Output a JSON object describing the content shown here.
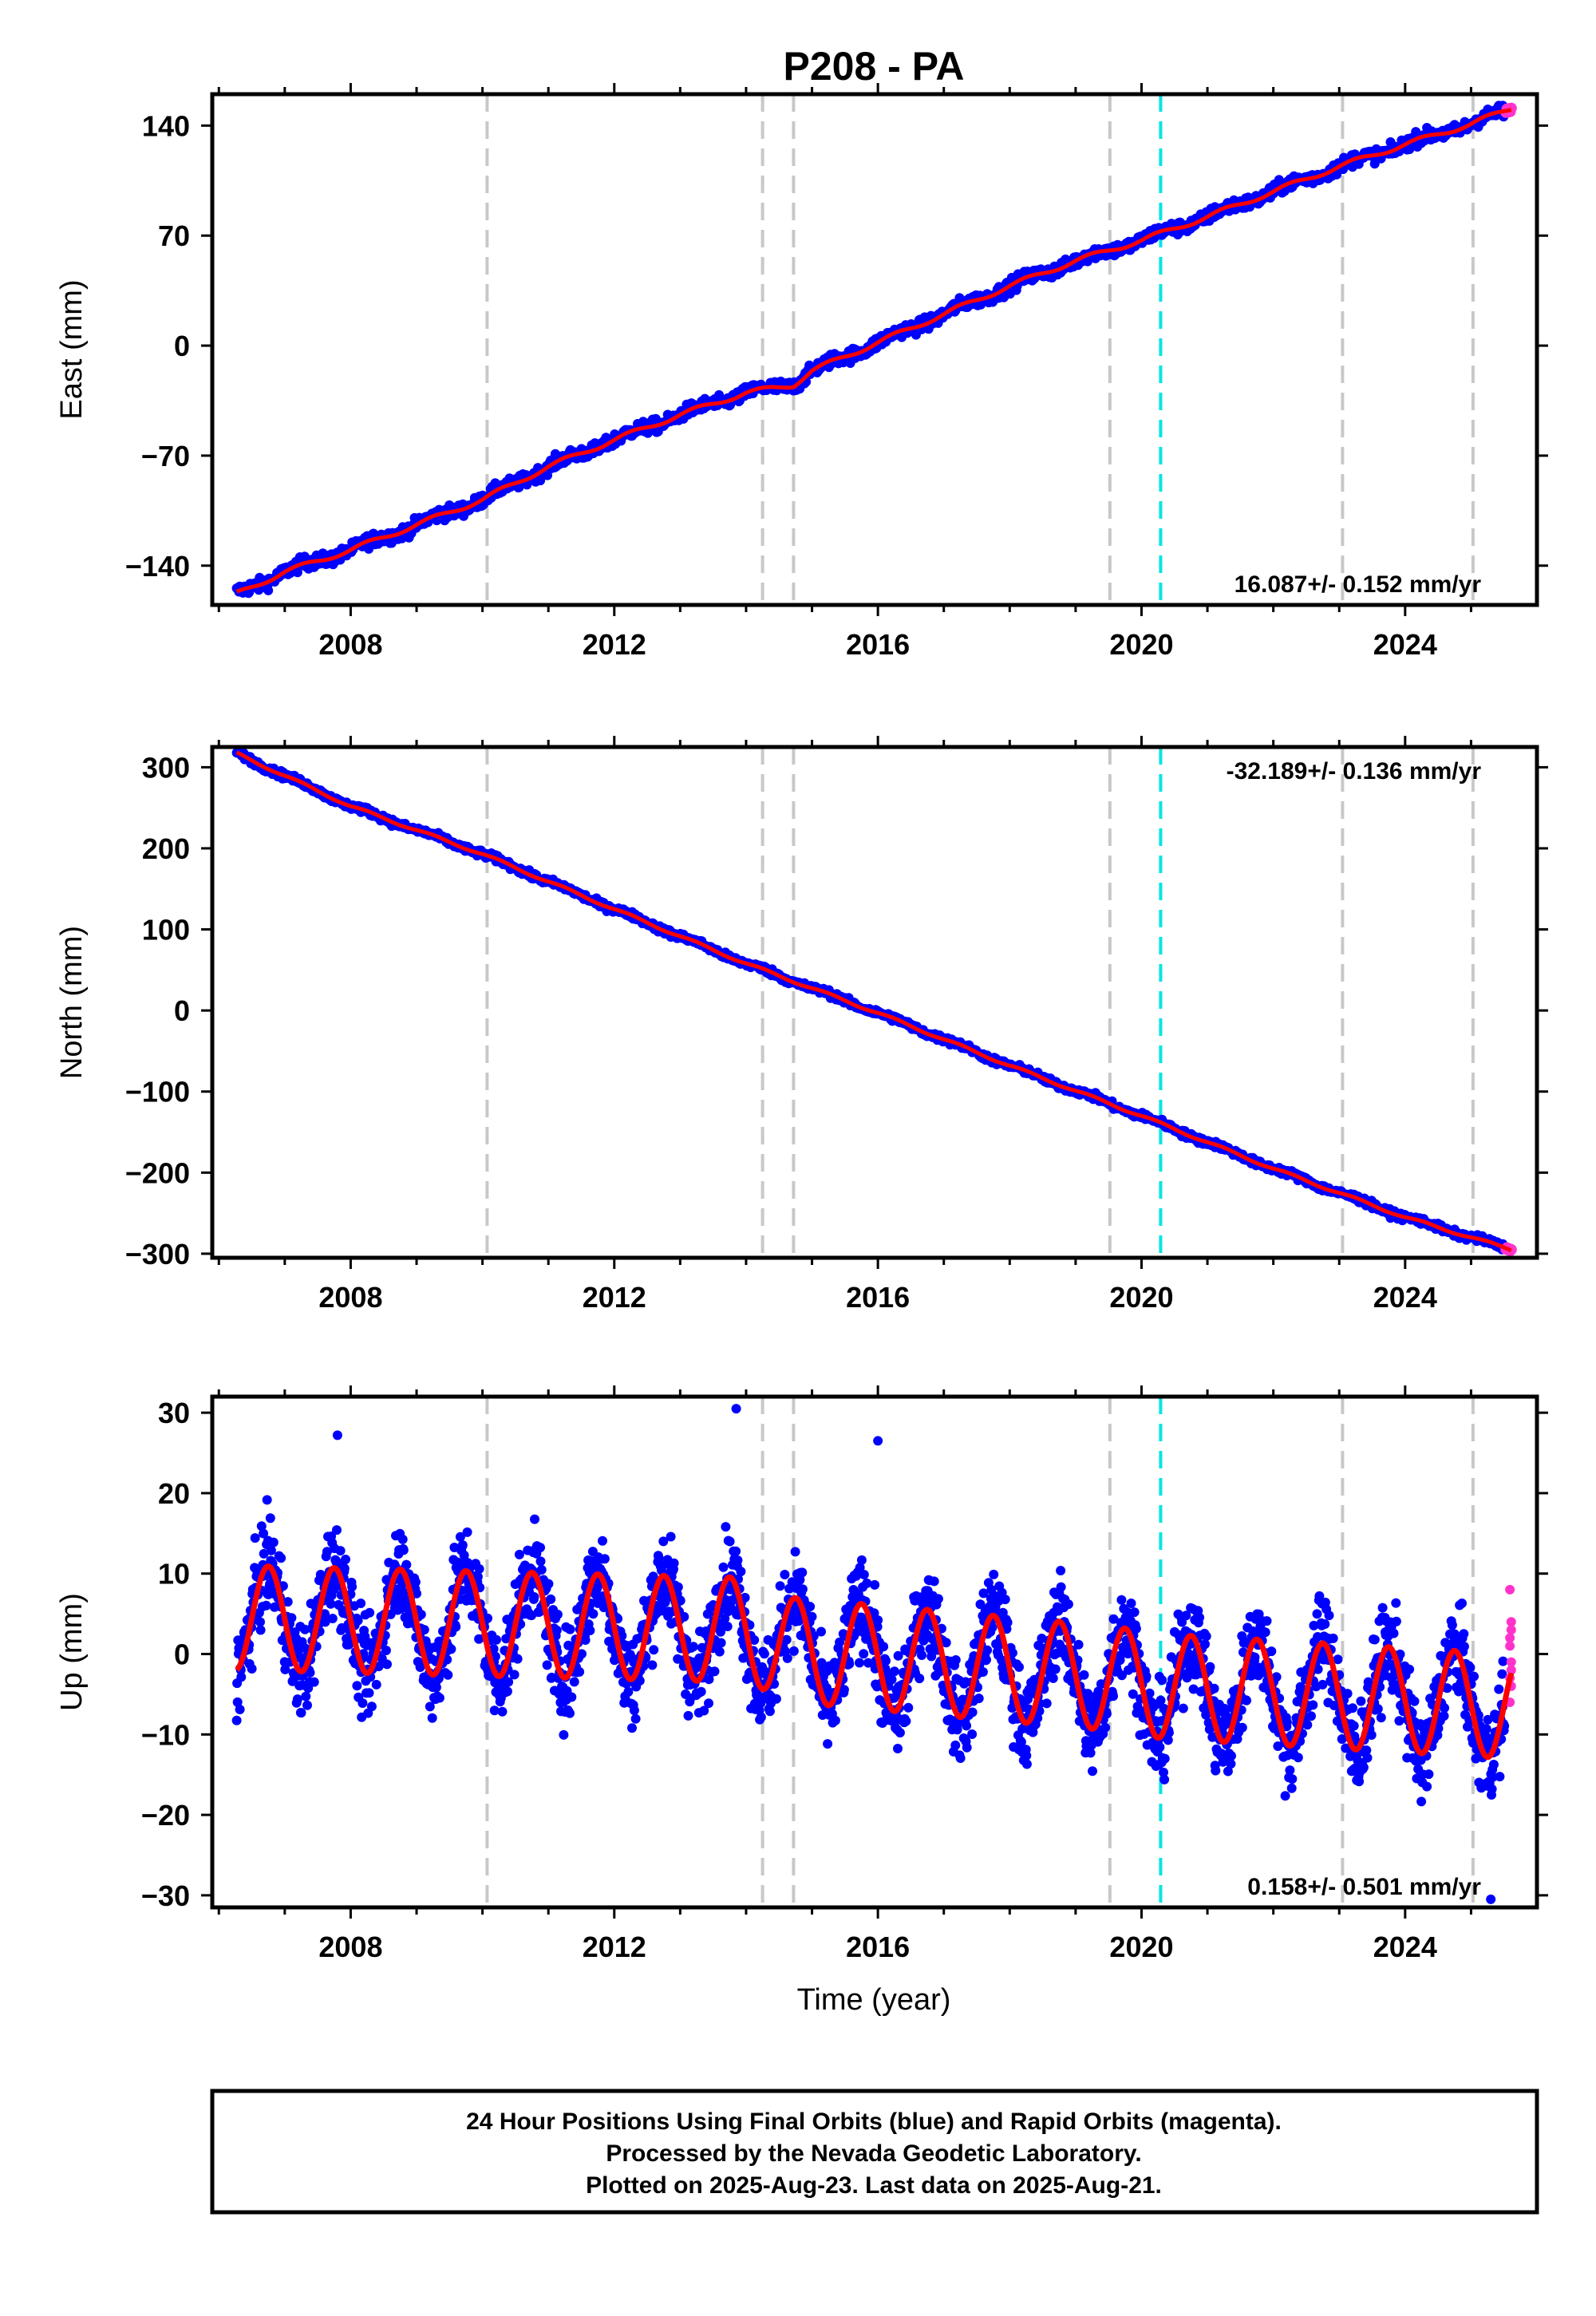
{
  "chart_data": {
    "title": "P208 - PA",
    "type": "scatter",
    "xlabel": "Time (year)",
    "xlim": [
      2005.9,
      2026.0
    ],
    "x_ticks": [
      2008,
      2012,
      2016,
      2020,
      2024
    ],
    "offset_lines": [
      2010.07,
      2014.25,
      2014.72,
      2019.52,
      2023.05,
      2025.03
    ],
    "equipment_change_lines": [
      2020.29
    ],
    "final_orbit_color": "#0000ff",
    "rapid_orbit_color": "#ff33cc",
    "model_color": "#ff0000",
    "offset_line_color": "#c8c8c8",
    "equipment_line_color": "#00e5e5",
    "panels": [
      {
        "component": "east",
        "ylabel": "East (mm)",
        "ylim": [
          -165,
          160
        ],
        "y_ticks": [
          -140,
          -70,
          0,
          70,
          140
        ],
        "tick_labels": [
          "−140",
          "−70",
          "0",
          "70",
          "140"
        ],
        "rate_label": "16.087+/- 0.152 mm/yr",
        "rate_position": "bottom-right",
        "series": {
          "start": [
            2006.27,
            -158
          ],
          "end": [
            2025.61,
            151
          ],
          "knots": [
            [
              2006.27,
              -158
            ],
            [
              2007.0,
              -144
            ],
            [
              2008.0,
              -130
            ],
            [
              2009.0,
              -114
            ],
            [
              2010.0,
              -98
            ],
            [
              2011.0,
              -77
            ],
            [
              2012.0,
              -60
            ],
            [
              2013.0,
              -44
            ],
            [
              2014.0,
              -30
            ],
            [
              2014.72,
              -25
            ],
            [
              2015.0,
              -16
            ],
            [
              2016.0,
              2
            ],
            [
              2017.0,
              20
            ],
            [
              2018.0,
              38
            ],
            [
              2019.0,
              54
            ],
            [
              2020.0,
              67
            ],
            [
              2021.0,
              82
            ],
            [
              2022.0,
              98
            ],
            [
              2023.0,
              114
            ],
            [
              2024.0,
              128
            ],
            [
              2025.0,
              141
            ],
            [
              2025.61,
              151
            ]
          ],
          "scatter_mm": 3
        }
      },
      {
        "component": "north",
        "ylabel": "North (mm)",
        "ylim": [
          -305,
          325
        ],
        "y_ticks": [
          -300,
          -200,
          -100,
          0,
          100,
          200,
          300
        ],
        "tick_labels": [
          "−300",
          "−200",
          "−100",
          "0",
          "100",
          "200",
          "300"
        ],
        "rate_label": "-32.189+/- 0.136 mm/yr",
        "rate_position": "top-right",
        "series": {
          "start": [
            2006.27,
            317
          ],
          "end": [
            2025.61,
            -295
          ],
          "knots": [
            [
              2006.27,
              317
            ],
            [
              2008.0,
              252
            ],
            [
              2010.0,
              193
            ],
            [
              2012.0,
              125
            ],
            [
              2014.0,
              58
            ],
            [
              2016.0,
              -3
            ],
            [
              2018.0,
              -68
            ],
            [
              2020.0,
              -130
            ],
            [
              2022.0,
              -195
            ],
            [
              2024.0,
              -255
            ],
            [
              2025.61,
              -295
            ]
          ],
          "scatter_mm": 3
        }
      },
      {
        "component": "up",
        "ylabel": "Up (mm)",
        "ylim": [
          -31.5,
          32
        ],
        "y_ticks": [
          -30,
          -20,
          -10,
          0,
          10,
          20,
          30
        ],
        "tick_labels": [
          "−30",
          "−20",
          "−10",
          "0",
          "10",
          "20",
          "30"
        ],
        "rate_label": "0.158+/- 0.501 mm/yr",
        "rate_position": "bottom-right",
        "series": {
          "model": "seasonal",
          "seasonal_mean": [
            [
              2006.27,
              4.5
            ],
            [
              2014.0,
              3.0
            ],
            [
              2014.72,
              0.5
            ],
            [
              2019.5,
              -3.0
            ],
            [
              2020.3,
              -4.0
            ],
            [
              2025.61,
              -6.5
            ]
          ],
          "seasonal_amplitude_mm": 6.5,
          "peak_fraction_of_year": 0.75,
          "scatter_mm": 4,
          "outliers": [
            [
              2013.85,
              30.5
            ],
            [
              2007.8,
              27.2
            ],
            [
              2016.0,
              26.5
            ],
            [
              2025.3,
              -30.5
            ]
          ],
          "rapid_orbit_values": [
            8,
            3,
            1,
            -1,
            -3,
            -4,
            -6,
            4,
            2,
            -2
          ]
        }
      }
    ],
    "footer": [
      "24 Hour Positions Using Final Orbits (blue) and Rapid Orbits (magenta).",
      "Processed by the Nevada Geodetic Laboratory.",
      "Plotted on 2025-Aug-23. Last data on 2025-Aug-21."
    ]
  }
}
